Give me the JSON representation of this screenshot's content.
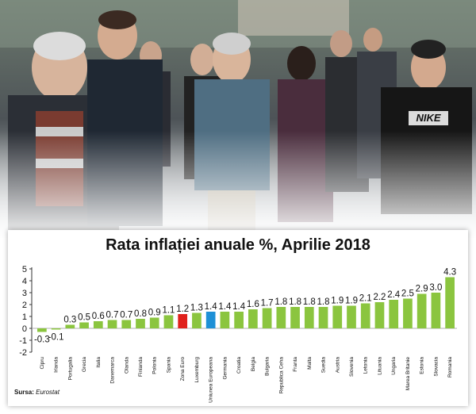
{
  "chart_data": {
    "type": "bar",
    "title": "Rata inflației anuale %, Aprilie 2018",
    "categories": [
      "Cipru",
      "Irlanda",
      "Portugalia",
      "Grecia",
      "Italia",
      "Danemarca",
      "Olanda",
      "Finlanda",
      "Polonia",
      "Spania",
      "Zona Euro",
      "Luxemburg",
      "Uniunea Europeana",
      "Germania",
      "Croatia",
      "Belgia",
      "Bulgaria",
      "Republica Ceha",
      "Franta",
      "Malta",
      "Suedia",
      "Austria",
      "Slovenia",
      "Letonia",
      "Lituania",
      "Ungaria",
      "Marea Britanie",
      "Estonia",
      "Slovacia",
      "Romania"
    ],
    "values": [
      -0.3,
      -0.1,
      0.3,
      0.5,
      0.6,
      0.7,
      0.7,
      0.8,
      0.9,
      1.1,
      1.2,
      1.3,
      1.4,
      1.4,
      1.4,
      1.6,
      1.7,
      1.8,
      1.8,
      1.8,
      1.8,
      1.9,
      1.9,
      2.1,
      2.2,
      2.4,
      2.5,
      2.9,
      3.0,
      4.3
    ],
    "value_labels": [
      "-0.3",
      "-0.1",
      "0.3",
      "0.5",
      "0.6",
      "0.7",
      "0.7",
      "0.8",
      "0.9",
      "1.1",
      "1.2",
      "1.3",
      "1.4",
      "1.4",
      "1.4",
      "1.6",
      "1.7",
      "1.8",
      "1.8",
      "1.8",
      "1.8",
      "1.9",
      "1.9",
      "2.1",
      "2.2",
      "2.4",
      "2.5",
      "2.9",
      "3.0",
      "4.3"
    ],
    "highlight": {
      "Zona Euro": "#e0201b",
      "Uniunea Europeana": "#1e90d6"
    },
    "bar_color": "#8bc53f",
    "ylim": [
      -2,
      5
    ],
    "yticks": [
      "-2",
      "-1",
      "0",
      "1",
      "2",
      "3",
      "4",
      "5"
    ],
    "grid": false
  },
  "source": {
    "label": "Sursa:",
    "name": "Eurostat"
  }
}
